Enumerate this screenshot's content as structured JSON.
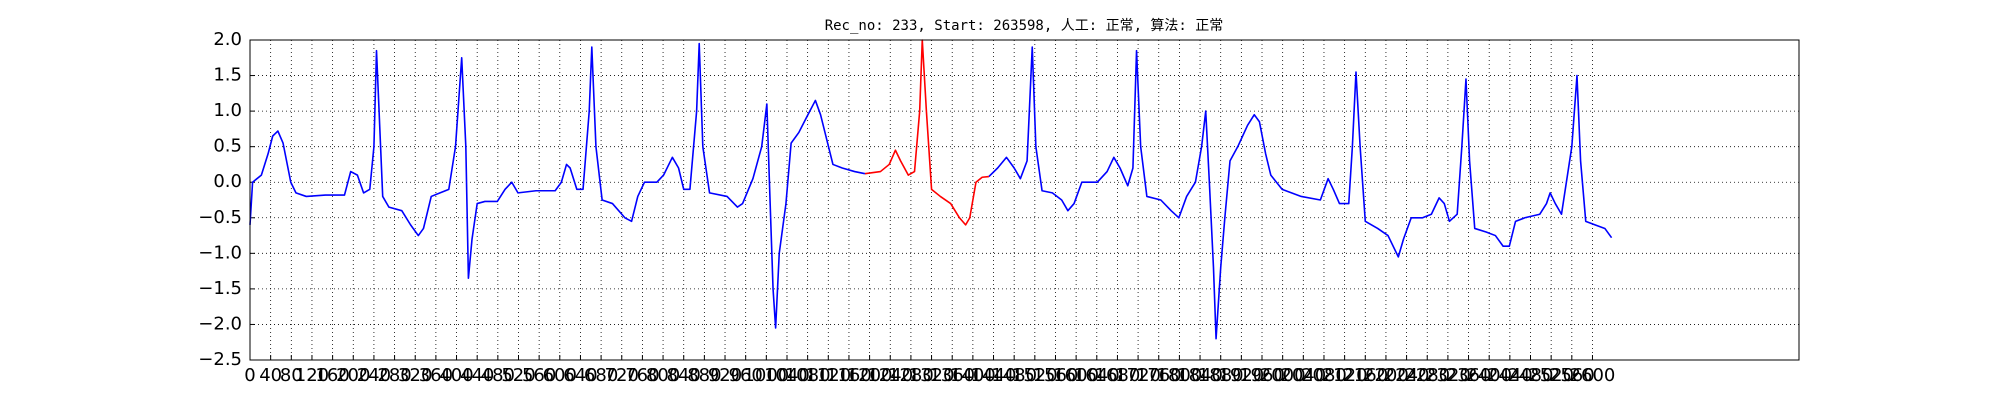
{
  "chart_data": {
    "type": "line",
    "title": "Rec_no: 233, Start: 263598, 人工: 正常, 算法: 正常",
    "x": [
      0,
      5,
      22,
      35,
      44,
      54,
      64,
      79,
      89,
      109,
      146,
      183,
      195,
      208,
      220,
      232,
      240,
      245,
      250,
      257,
      269,
      294,
      311,
      326,
      336,
      351,
      368,
      385,
      398,
      410,
      418,
      423,
      430,
      440,
      455,
      479,
      494,
      507,
      519,
      554,
      591,
      603,
      613,
      620,
      633,
      645,
      657,
      662,
      670,
      682,
      702,
      726,
      739,
      751,
      764,
      788,
      801,
      818,
      830,
      840,
      852,
      865,
      870,
      877,
      890,
      924,
      944,
      954,
      974,
      991,
      1001,
      1006,
      1013,
      1018,
      1025,
      1038,
      1048,
      1063,
      1077,
      1095,
      1105,
      1117,
      1129,
      1147,
      1171,
      1191,
      1221,
      1238,
      1250,
      1260,
      1275,
      1287,
      1297,
      1302,
      1310,
      1320,
      1337,
      1357,
      1374,
      1386,
      1394,
      1406,
      1418,
      1431,
      1448,
      1465,
      1480,
      1492,
      1505,
      1515,
      1522,
      1534,
      1554,
      1572,
      1584,
      1596,
      1611,
      1641,
      1660,
      1673,
      1685,
      1700,
      1710,
      1717,
      1725,
      1737,
      1764,
      1784,
      1799,
      1814,
      1831,
      1843,
      1851,
      1858,
      1866,
      1871,
      1880,
      1888,
      1898,
      1913,
      1932,
      1945,
      1955,
      1967,
      1977,
      1999,
      2036,
      2073,
      2088,
      2098,
      2110,
      2128,
      2135,
      2142,
      2150,
      2160,
      2184,
      2204,
      2224,
      2234,
      2249,
      2271,
      2288,
      2303,
      2313,
      2323,
      2338,
      2347,
      2355,
      2362,
      2372,
      2394,
      2412,
      2427,
      2439,
      2451,
      2469,
      2498,
      2511,
      2518,
      2528,
      2540,
      2560,
      2570,
      2577,
      2587,
      2605,
      2624,
      2637
    ],
    "series": [
      {
        "color": "#0000ff",
        "values": [
          -0.6,
          0.0,
          0.1,
          0.4,
          0.65,
          0.72,
          0.55,
          0.0,
          -0.15,
          -0.2,
          -0.18,
          -0.18,
          0.15,
          0.1,
          -0.15,
          -0.1,
          0.5,
          1.85,
          1.0,
          -0.2,
          -0.35,
          -0.4,
          -0.6,
          -0.75,
          -0.65,
          -0.2,
          -0.15,
          -0.1,
          0.5,
          1.75,
          0.5,
          -1.35,
          -0.8,
          -0.3,
          -0.27,
          -0.27,
          -0.1,
          0.0,
          -0.15,
          -0.12,
          -0.12,
          0.0,
          0.25,
          0.2,
          -0.1,
          -0.1,
          1.0,
          1.9,
          0.5,
          -0.25,
          -0.3,
          -0.5,
          -0.55,
          -0.2,
          0.0,
          0.0,
          0.1,
          0.35,
          0.2,
          -0.1,
          -0.1,
          1.0,
          1.95,
          0.5,
          -0.15,
          -0.2,
          -0.35,
          -0.3,
          0.05,
          0.5,
          1.1,
          0.0,
          -1.5,
          -2.05,
          -1.0,
          -0.3,
          0.55,
          0.7,
          0.9,
          1.15,
          0.95,
          0.6,
          0.25,
          0.2,
          0.15,
          0.12,
          null,
          null,
          null,
          null,
          null,
          null,
          null,
          null,
          null,
          null,
          null,
          null,
          null,
          null,
          null,
          null,
          null,
          0.08,
          0.2,
          0.35,
          0.2,
          0.05,
          0.3,
          1.9,
          0.5,
          -0.12,
          -0.15,
          -0.25,
          -0.4,
          -0.3,
          0.0,
          0.0,
          0.15,
          0.35,
          0.2,
          -0.05,
          0.2,
          1.85,
          0.5,
          -0.2,
          -0.25,
          -0.4,
          -0.5,
          -0.2,
          0.0,
          0.5,
          1.0,
          0.0,
          -1.2,
          -2.2,
          -1.2,
          -0.5,
          0.3,
          0.5,
          0.8,
          0.95,
          0.85,
          0.4,
          0.1,
          -0.1,
          -0.2,
          -0.25,
          0.05,
          -0.1,
          -0.3,
          -0.3,
          0.5,
          1.55,
          0.5,
          -0.55,
          -0.65,
          -0.75,
          -1.05,
          -0.8,
          -0.5,
          -0.5,
          -0.45,
          -0.22,
          -0.3,
          -0.55,
          -0.45,
          0.5,
          1.45,
          0.3,
          -0.65,
          -0.7,
          -0.75,
          -0.9,
          -0.9,
          -0.55,
          -0.5,
          -0.45,
          -0.3,
          -0.15,
          -0.3,
          -0.45,
          0.5,
          1.5,
          0.3,
          -0.55,
          -0.6,
          -0.65,
          -0.78
        ]
      },
      {
        "color": "#ff0000",
        "values": [
          null,
          null,
          null,
          null,
          null,
          null,
          null,
          null,
          null,
          null,
          null,
          null,
          null,
          null,
          null,
          null,
          null,
          null,
          null,
          null,
          null,
          null,
          null,
          null,
          null,
          null,
          null,
          null,
          null,
          null,
          null,
          null,
          null,
          null,
          null,
          null,
          null,
          null,
          null,
          null,
          null,
          null,
          null,
          null,
          null,
          null,
          null,
          null,
          null,
          null,
          null,
          null,
          null,
          null,
          null,
          null,
          null,
          null,
          null,
          null,
          null,
          null,
          null,
          null,
          null,
          null,
          null,
          null,
          null,
          null,
          null,
          null,
          null,
          null,
          null,
          null,
          null,
          null,
          null,
          null,
          null,
          null,
          null,
          null,
          null,
          0.12,
          0.15,
          0.25,
          0.45,
          0.3,
          0.1,
          0.15,
          1.0,
          2.0,
          1.0,
          -0.1,
          -0.2,
          -0.3,
          -0.5,
          -0.6,
          -0.5,
          0.0,
          0.07,
          0.08,
          null,
          null,
          null,
          null,
          null,
          null,
          null,
          null,
          null,
          null,
          null,
          null,
          null,
          null,
          null,
          null,
          null,
          null,
          null,
          null,
          null,
          null,
          null,
          null,
          null,
          null,
          null,
          null,
          null,
          null,
          null,
          null,
          null,
          null,
          null,
          null,
          null,
          null,
          null,
          null,
          null,
          null,
          null,
          null,
          null,
          null,
          null,
          null,
          null,
          null,
          null,
          null,
          null,
          null,
          null,
          null,
          null,
          null,
          null,
          null,
          null,
          null,
          null,
          null,
          null,
          null,
          null,
          null,
          null,
          null,
          null,
          null,
          null,
          null,
          null,
          null,
          null,
          null,
          null,
          null,
          null,
          null,
          null,
          null,
          null
        ]
      }
    ],
    "xlim": [
      0,
      3000
    ],
    "xticks": [
      0,
      40,
      80,
      120,
      160,
      200,
      240,
      280,
      320,
      360,
      400,
      440,
      480,
      520,
      560,
      600,
      640,
      680,
      720,
      760,
      800,
      840,
      880,
      920,
      960,
      1000,
      1040,
      1080,
      1120,
      1160,
      1200,
      1240,
      1280,
      1320,
      1360,
      1400,
      1440,
      1480,
      1520,
      1560,
      1600,
      1640,
      1680,
      1720,
      1760,
      1800,
      1840,
      1880,
      1920,
      1960,
      2000,
      2040,
      2080,
      2120,
      2160,
      2200,
      2240,
      2280,
      2320,
      2360,
      2400,
      2440,
      2480,
      2520,
      2560,
      2600
    ],
    "ylim": [
      -2.5,
      2.0
    ],
    "yticks": [
      {
        "value": -2.5,
        "label": "−2.5"
      },
      {
        "value": -2.0,
        "label": "−2.0"
      },
      {
        "value": -1.5,
        "label": "−1.5"
      },
      {
        "value": -1.0,
        "label": "−1.0"
      },
      {
        "value": -0.5,
        "label": "−0.5"
      },
      {
        "value": 0.0,
        "label": "0.0"
      },
      0.5,
      {
        "value": 1.0,
        "label": "1.0"
      },
      1.5,
      {
        "value": 2.0,
        "label": "2.0"
      }
    ],
    "grid": true
  }
}
